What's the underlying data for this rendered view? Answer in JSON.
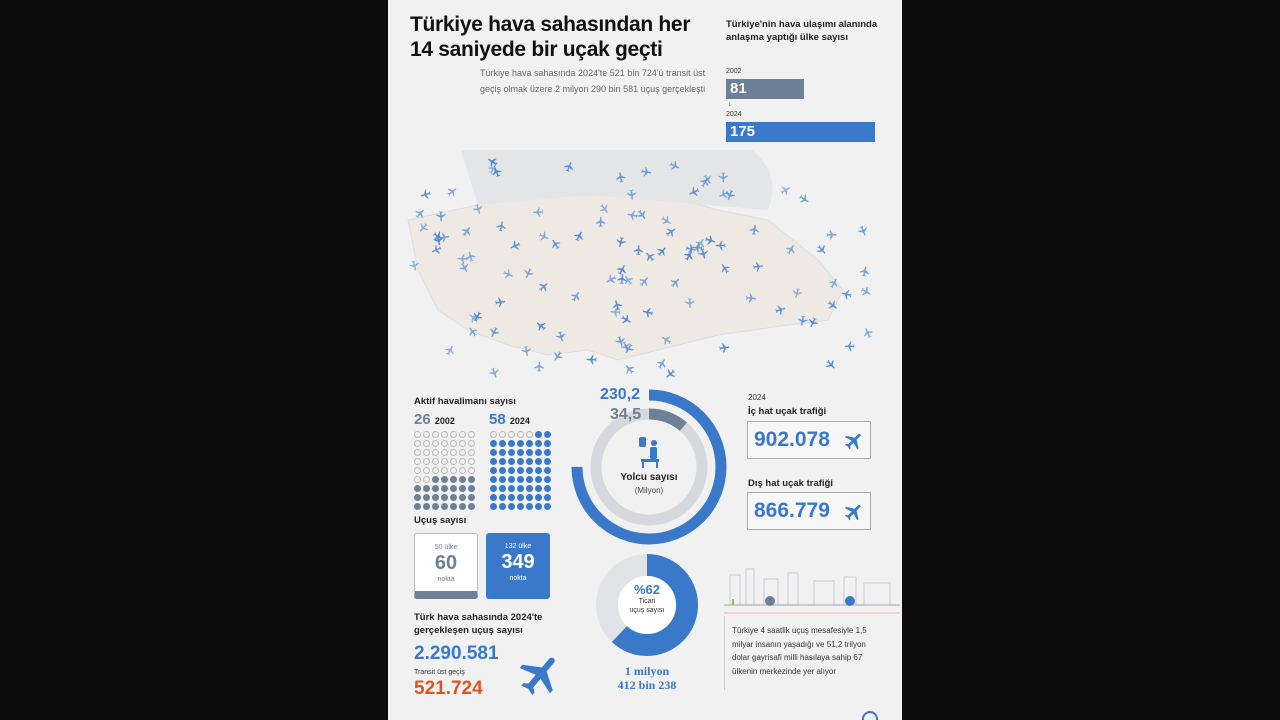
{
  "title": "Türkiye hava sahasından her 14 saniyede bir uçak geçti",
  "subtitle": "Türkiye hava sahasında 2024'te 521 bin 724'ü transit üst geçiş olmak üzere 2 milyon 290 bin 581 uçuş gerçekleşti",
  "agreements": {
    "label": "Türkiye'nin hava ulaşımı alanında anlaşma yaptığı ülke sayısı",
    "y1": "2002",
    "v1": "81",
    "y2": "2024",
    "v2": "175",
    "arrow": "↓"
  },
  "airports": {
    "label": "Aktif havalimanı sayısı",
    "a_count": "26",
    "a_year": "2002",
    "b_count": "58",
    "b_year": "2024",
    "total_dots": 63,
    "a_filled": 26,
    "b_filled": 58
  },
  "passengers": {
    "v2024": "230,2",
    "v2002": "34,5",
    "label": "Yolcu sayısı",
    "unit": "(Milyon)",
    "max_value": 230.2,
    "max_fraction": 0.75
  },
  "traffic": {
    "year": "2024",
    "domestic_label": "İç hat uçak trafiği",
    "domestic": "902.078",
    "intl_label": "Dış hat uçak trafiği",
    "intl": "866.779"
  },
  "flights": {
    "label": "Uçuş sayısı",
    "c1_top": "50 ülke",
    "c1_num": "60",
    "c1_bot": "nokta",
    "c2_top": "132 ülke",
    "c2_num": "349",
    "c2_bot": "nokta"
  },
  "commercial": {
    "pct_label": "%62",
    "pct": 62,
    "line1": "Ticari",
    "line2": "uçuş sayısı",
    "total1": "1 milyon",
    "total2": "412 bin 238"
  },
  "total": {
    "label": "Türk hava sahasında 2024'te gerçekleşen uçuş sayısı",
    "value": "2.290.581",
    "transit_label": "Transit üst geçiş",
    "transit": "521.724"
  },
  "hub": {
    "text": "Türkiye 4 saatlik uçuş mesafesiyle 1,5 milyar insanın yaşadığı ve 51,2 trilyon dolar gayrisafi milli hasılaya sahip 67 ülkenin merkezinde yer alıyor"
  },
  "colors": {
    "blue": "#3a78c9",
    "gray": "#6f7f95",
    "orange": "#e0541e"
  }
}
